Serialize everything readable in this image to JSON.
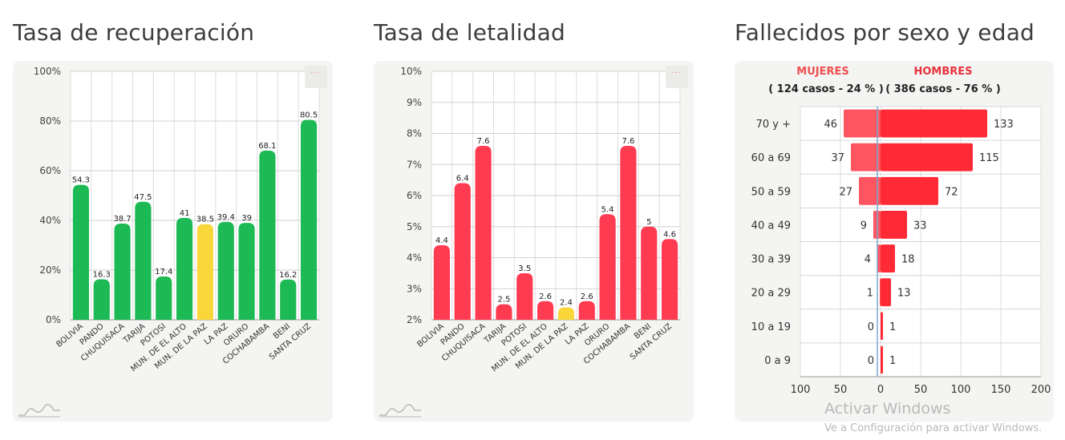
{
  "chart_data": [
    {
      "type": "bar",
      "title": "Tasa de recuperación",
      "categories": [
        "BOLIVIA",
        "PANDO",
        "CHUQUISACA",
        "TARIJA",
        "POTOSI",
        "MUN. DE EL ALTO",
        "MUN. DE LA PAZ",
        "LA PAZ",
        "ORURO",
        "COCHABAMBA",
        "BENI",
        "SANTA CRUZ"
      ],
      "values": [
        54.3,
        16.3,
        38.7,
        47.5,
        17.4,
        41,
        38.5,
        39.4,
        39,
        68.1,
        16.2,
        80.5
      ],
      "value_labels": [
        "54.3",
        "16.3",
        "38.7",
        "47.5",
        "17.4",
        "41",
        "38.5",
        "39.4",
        "39",
        "68.1",
        "16.2",
        "80.5"
      ],
      "highlight_index": 6,
      "ylim": [
        0,
        100
      ],
      "yticks": [
        0,
        20,
        40,
        60,
        80,
        100
      ],
      "ytick_labels": [
        "0%",
        "20%",
        "40%",
        "60%",
        "80%",
        "100%"
      ],
      "bar_color": "#1db954",
      "highlight_color": "#f9d73a",
      "grid": true
    },
    {
      "type": "bar",
      "title": "Tasa de letalidad",
      "categories": [
        "BOLIVIA",
        "PANDO",
        "CHUQUISACA",
        "TARIJA",
        "POTOSI",
        "MUN. DE EL ALTO",
        "MUN. DE LA PAZ",
        "LA PAZ",
        "ORURO",
        "COCHABAMBA",
        "BENI",
        "SANTA CRUZ"
      ],
      "values": [
        4.4,
        6.4,
        7.6,
        2.5,
        3.5,
        2.6,
        2.4,
        2.6,
        5.4,
        7.6,
        5,
        4.6
      ],
      "value_labels": [
        "4.4",
        "6.4",
        "7.6",
        "2.5",
        "3.5",
        "2.6",
        "2.4",
        "2.6",
        "5.4",
        "7.6",
        "5",
        "4.6"
      ],
      "highlight_index": 6,
      "ylim": [
        2,
        10
      ],
      "yticks": [
        2,
        3,
        4,
        5,
        6,
        7,
        8,
        9,
        10
      ],
      "ytick_labels": [
        "2%",
        "3%",
        "4%",
        "5%",
        "6%",
        "7%",
        "8%",
        "9%",
        "10%"
      ],
      "bar_color": "#ff3b52",
      "highlight_color": "#f9d73a",
      "grid": true
    },
    {
      "type": "bar",
      "orientation": "horizontal-diverging",
      "title": "Fallecidos por sexo y edad",
      "legend": {
        "women_label": "MUJERES",
        "women_summary": "( 124 casos - 24 % )",
        "men_label": "HOMBRES",
        "men_summary": "( 386 casos - 76 % )"
      },
      "categories": [
        "70 y +",
        "60 a 69",
        "50 a 59",
        "40 a 49",
        "30 a 39",
        "20 a 29",
        "10 a 19",
        "0 a 9"
      ],
      "series": [
        {
          "name": "MUJERES",
          "values": [
            46,
            37,
            27,
            9,
            4,
            1,
            0,
            0
          ],
          "color": "#ff5560"
        },
        {
          "name": "HOMBRES",
          "values": [
            133,
            115,
            72,
            33,
            18,
            13,
            1,
            1
          ],
          "color": "#ff2a35"
        }
      ],
      "xlim": [
        -100,
        200
      ],
      "xticks": [
        -100,
        -50,
        0,
        50,
        100,
        150,
        200
      ],
      "xtick_labels": [
        "100",
        "50",
        "0",
        "50",
        "100",
        "150",
        "200"
      ],
      "label_color_women": "#ef4f4f",
      "label_color_men": "#e8333b",
      "grid": true
    }
  ],
  "watermark": {
    "line1": "Activar Windows",
    "line2": "Ve a Configuración para activar Windows."
  },
  "menu_icon": "ellipsis-icon",
  "logo_icon": "chart-logo-icon"
}
